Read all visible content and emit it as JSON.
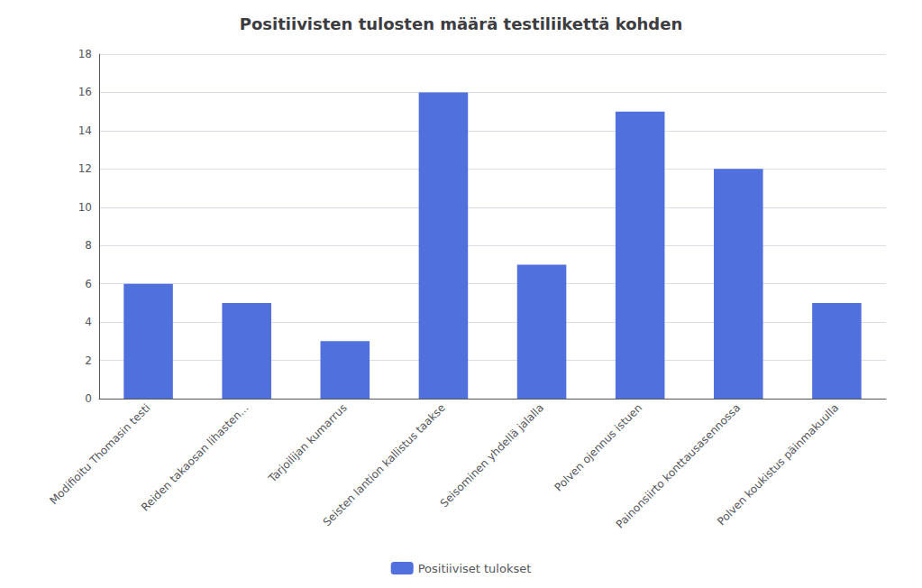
{
  "chart_data": {
    "type": "bar",
    "title": "Positiivisten tulosten määrä testiliikettä kohden",
    "categories": [
      "Modifioitu Thomasin testi",
      "Reiden takaosan lihasten...",
      "Tarjoilijan kumarrus",
      "Seisten lantion kallistus taakse",
      "Seisominen yhdellä jalalla",
      "Polven ojennus istuen",
      "Painonsiirto konttausasennossa",
      "Polven koukistus päinmakuulla"
    ],
    "series": [
      {
        "name": "Positiiviset tulokset",
        "values": [
          6,
          5,
          3,
          16,
          7,
          15,
          12,
          5
        ]
      }
    ],
    "ylim": [
      0,
      18
    ],
    "yticks": [
      0,
      2,
      4,
      6,
      8,
      10,
      12,
      14,
      16,
      18
    ],
    "grid": true,
    "legend": "bottom"
  }
}
